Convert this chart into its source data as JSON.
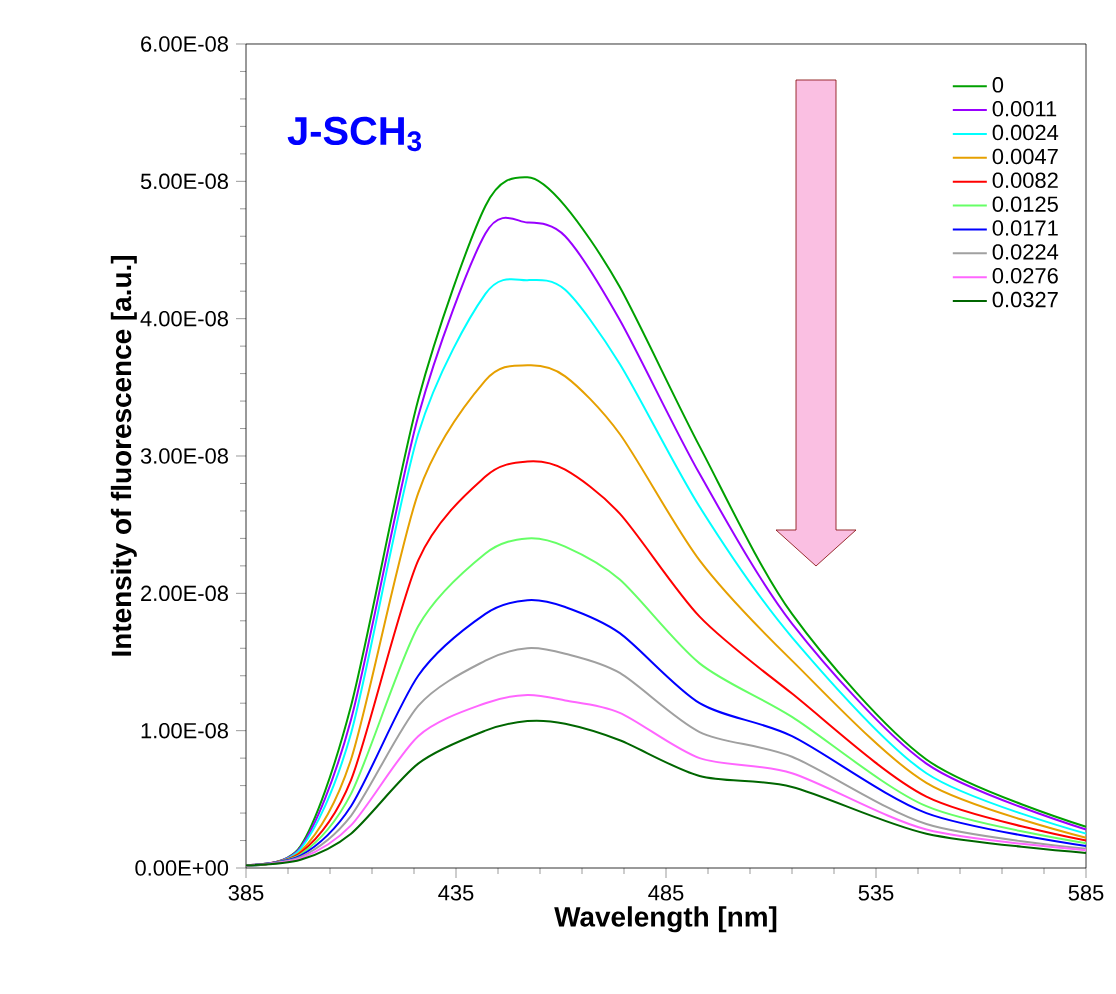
{
  "chart_data": {
    "type": "line",
    "xlabel": "Wavelength [nm]",
    "ylabel": "Intensity of fluorescence [a.u.]",
    "annotations": [
      "J-SCH$_{3}$"
    ],
    "x": [
      385,
      398,
      410,
      426,
      442,
      452,
      461,
      474,
      493,
      515,
      547,
      585
    ],
    "xlim": [
      385,
      585
    ],
    "xticks": [
      385,
      435,
      485,
      535,
      585
    ],
    "ylim": [
      0,
      6e-08
    ],
    "yticks": [
      {
        "value": 0,
        "label": "0.00E+00"
      },
      {
        "value": 1e-08,
        "label": "1.00E-08"
      },
      {
        "value": 2e-08,
        "label": "2.00E-08"
      },
      {
        "value": 3e-08,
        "label": "3.00E-08"
      },
      {
        "value": 4e-08,
        "label": "4.00E-08"
      },
      {
        "value": 5e-08,
        "label": "5.00E-08"
      },
      {
        "value": 6e-08,
        "label": "6.00E-08"
      }
    ],
    "legend": "top right",
    "marker": "none",
    "line_style": "solid",
    "series": [
      {
        "name": "0",
        "color": "#00a000",
        "values": [
          2e-10,
          1.6e-09,
          1.18e-08,
          3.41e-08,
          4.82e-08,
          5.03e-08,
          4.82e-08,
          4.23e-08,
          3.07e-08,
          1.85e-08,
          7.9e-09,
          3e-09
        ]
      },
      {
        "name": "0.0011",
        "color": "#9900ff",
        "values": [
          2e-10,
          1.5e-09,
          1.08e-08,
          3.29e-08,
          4.62e-08,
          4.7e-08,
          4.6e-08,
          3.99e-08,
          2.87e-08,
          1.78e-08,
          7.6e-09,
          2.8e-09
        ]
      },
      {
        "name": "0.0024",
        "color": "#00ffff",
        "values": [
          2e-10,
          1.4e-09,
          9.8e-09,
          3.16e-08,
          4.18e-08,
          4.28e-08,
          4.21e-08,
          3.67e-08,
          2.63e-08,
          1.68e-08,
          6.9e-09,
          2.5e-09
        ]
      },
      {
        "name": "0.0047",
        "color": "#e6a000",
        "values": [
          2e-10,
          1.2e-09,
          7.9e-09,
          2.73e-08,
          3.55e-08,
          3.66e-08,
          3.58e-08,
          3.16e-08,
          2.24e-08,
          1.51e-08,
          6.2e-09,
          2.2e-09
        ]
      },
      {
        "name": "0.0082",
        "color": "#ff0000",
        "values": [
          2e-10,
          1.1e-09,
          6.4e-09,
          2.24e-08,
          2.85e-08,
          2.96e-08,
          2.9e-08,
          2.58e-08,
          1.83e-08,
          1.27e-08,
          5.2e-09,
          2e-09
        ]
      },
      {
        "name": "0.0125",
        "color": "#66ff66",
        "values": [
          2e-10,
          1e-09,
          5.4e-09,
          1.76e-08,
          2.29e-08,
          2.4e-08,
          2.34e-08,
          2.1e-08,
          1.49e-08,
          1.1e-08,
          4.5e-09,
          1.8e-09
        ]
      },
      {
        "name": "0.0171",
        "color": "#0000ff",
        "values": [
          2e-10,
          9e-10,
          4.5e-09,
          1.4e-08,
          1.85e-08,
          1.95e-08,
          1.9e-08,
          1.71e-08,
          1.2e-08,
          9.6e-09,
          4e-09,
          1.6e-09
        ]
      },
      {
        "name": "0.0224",
        "color": "#a0a0a0",
        "values": [
          2e-10,
          8e-10,
          3.8e-09,
          1.18e-08,
          1.51e-08,
          1.6e-08,
          1.56e-08,
          1.42e-08,
          9.9e-09,
          8.1e-09,
          3.2e-09,
          1.4e-09
        ]
      },
      {
        "name": "0.0276",
        "color": "#ff66ff",
        "values": [
          2e-10,
          7e-10,
          3.1e-09,
          9.6e-09,
          1.2e-08,
          1.26e-08,
          1.22e-08,
          1.13e-08,
          8e-09,
          6.9e-09,
          2.8e-09,
          1.3e-09
        ]
      },
      {
        "name": "0.0327",
        "color": "#006600",
        "values": [
          2e-10,
          6e-10,
          2.5e-09,
          7.6e-09,
          1e-08,
          1.07e-08,
          1.05e-08,
          9.3e-09,
          6.7e-09,
          5.9e-09,
          2.5e-09,
          1.1e-09
        ]
      }
    ]
  }
}
